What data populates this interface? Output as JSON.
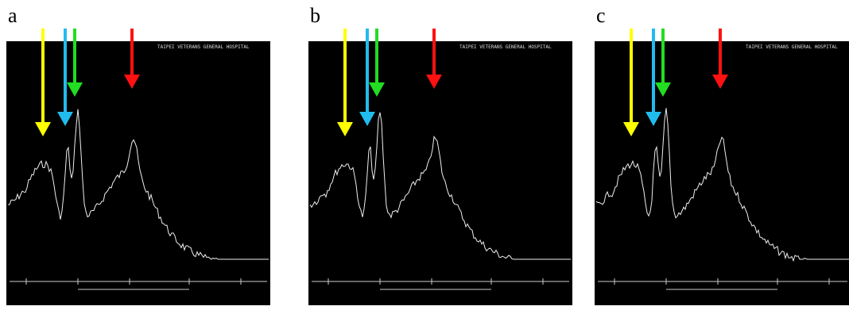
{
  "panels": [
    {
      "label": "a",
      "header": "TAIPEI VETERANS GENERAL HOSPITAL"
    },
    {
      "label": "b",
      "header": "TAIPEI VETERANS GENERAL HOSPITAL"
    },
    {
      "label": "c",
      "header": "TAIPEI VETERANS GENERAL HOSPITAL"
    }
  ]
}
